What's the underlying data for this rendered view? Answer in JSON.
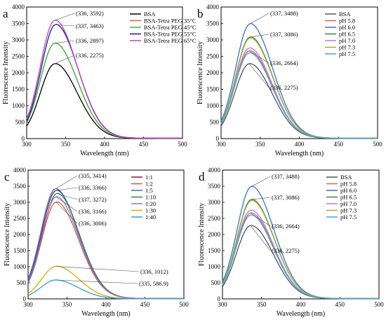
{
  "chart_data": [
    {
      "panel": "a",
      "type": "line",
      "xlabel": "Wavelength (nm)",
      "ylabel": "Fluorescence Intensity",
      "xlim": [
        300,
        500
      ],
      "ylim": [
        0,
        4000
      ],
      "xticks": [
        300,
        350,
        400,
        450,
        500
      ],
      "yticks": [
        0,
        500,
        1000,
        1500,
        2000,
        2500,
        3000,
        3500,
        4000
      ],
      "legend_position": "top-right",
      "series": [
        {
          "name": "BSA",
          "color": "#000000",
          "peak_x": 336,
          "peak_y": 2275
        },
        {
          "name": "BSA-Tetra PEG 35°C",
          "color": "#e05a2b",
          "peak_x": 336,
          "peak_y": 2897
        },
        {
          "name": "BSA-Tetra PEG 45°C",
          "color": "#3cb83c",
          "peak_x": 336,
          "peak_y": 2897
        },
        {
          "name": "BSA-Tetra PEG 55°C",
          "color": "#1a1a8c",
          "peak_x": 337,
          "peak_y": 3463
        },
        {
          "name": "BSA-Tetra PEG 65°C",
          "color": "#c040c0",
          "peak_x": 336,
          "peak_y": 3592
        }
      ],
      "annotations": [
        {
          "text": "(336, 3592)",
          "x": 336,
          "y": 3592
        },
        {
          "text": "(337, 3463)",
          "x": 337,
          "y": 3463
        },
        {
          "text": "(336, 2897)",
          "x": 336,
          "y": 2897
        },
        {
          "text": "(336, 2275)",
          "x": 336,
          "y": 2275
        }
      ]
    },
    {
      "panel": "b",
      "type": "line",
      "xlabel": "Wavelength (nm)",
      "ylabel": "Fluorescence Intensity",
      "xlim": [
        300,
        500
      ],
      "ylim": [
        0,
        4000
      ],
      "xticks": [
        300,
        350,
        400,
        450,
        500
      ],
      "yticks": [
        0,
        500,
        1000,
        1500,
        2000,
        2500,
        3000,
        3500,
        4000
      ],
      "legend_position": "top-right",
      "series": [
        {
          "name": "BSA",
          "color": "#555555",
          "peak_x": 336,
          "peak_y": 2275
        },
        {
          "name": "pH 5.8",
          "color": "#d95f5f",
          "peak_x": 336,
          "peak_y": 2664
        },
        {
          "name": "pH 6.0",
          "color": "#3a6fd8",
          "peak_x": 337,
          "peak_y": 3488
        },
        {
          "name": "pH 6.5",
          "color": "#2e8b57",
          "peak_x": 337,
          "peak_y": 3086
        },
        {
          "name": "pH 7.0",
          "color": "#b57edc",
          "peak_x": 336,
          "peak_y": 2750
        },
        {
          "name": "pH 7.3",
          "color": "#a8b020",
          "peak_x": 337,
          "peak_y": 3050
        },
        {
          "name": "pH 7.5",
          "color": "#40a8d8",
          "peak_x": 336,
          "peak_y": 2600
        }
      ],
      "annotations": [
        {
          "text": "(337, 3488)",
          "x": 337,
          "y": 3488
        },
        {
          "text": "(337, 3086)",
          "x": 337,
          "y": 3086
        },
        {
          "text": "(336, 2664)",
          "x": 336,
          "y": 2664
        },
        {
          "text": "(336, 2275)",
          "x": 336,
          "y": 2275
        }
      ]
    },
    {
      "panel": "c",
      "type": "line",
      "xlabel": "Wavelength (nm)",
      "ylabel": "Fluorescence Intensity",
      "xlim": [
        300,
        500
      ],
      "ylim": [
        0,
        4000
      ],
      "xticks": [
        300,
        350,
        400,
        450,
        500
      ],
      "yticks": [
        0,
        500,
        1000,
        1500,
        2000,
        2500,
        3000,
        3500,
        4000
      ],
      "legend_position": "top-right",
      "series": [
        {
          "name": "1:1",
          "color": "#7a1f3d",
          "peak_x": 336,
          "peak_y": 3366
        },
        {
          "name": "1:2",
          "color": "#e05a2b",
          "peak_x": 336,
          "peak_y": 3006
        },
        {
          "name": "1:5",
          "color": "#3a6fd8",
          "peak_x": 335,
          "peak_y": 3414
        },
        {
          "name": "1:10",
          "color": "#2e8b57",
          "peak_x": 337,
          "peak_y": 3272
        },
        {
          "name": "1:20",
          "color": "#9b6fd0",
          "peak_x": 336,
          "peak_y": 3166
        },
        {
          "name": "1:30",
          "color": "#d8a800",
          "peak_x": 336,
          "peak_y": 1012
        },
        {
          "name": "1:40",
          "color": "#30a0d0",
          "peak_x": 335,
          "peak_y": 586.9
        }
      ],
      "annotations": [
        {
          "text": "(335, 3414)",
          "x": 335,
          "y": 3414
        },
        {
          "text": "(336, 3366)",
          "x": 336,
          "y": 3366
        },
        {
          "text": "(337, 3272)",
          "x": 337,
          "y": 3272
        },
        {
          "text": "(336, 3166)",
          "x": 336,
          "y": 3166
        },
        {
          "text": "(336, 3006)",
          "x": 336,
          "y": 3006
        },
        {
          "text": "(336, 1012)",
          "x": 336,
          "y": 1012
        },
        {
          "text": "(335, 586.9)",
          "x": 335,
          "y": 586.9
        }
      ]
    },
    {
      "panel": "d",
      "type": "line",
      "xlabel": "Wavelength (nm)",
      "ylabel": "Fluorescence Intensity",
      "xlim": [
        300,
        500
      ],
      "ylim": [
        0,
        4000
      ],
      "xticks": [
        300,
        350,
        400,
        450,
        500
      ],
      "yticks": [
        0,
        500,
        1000,
        1500,
        2000,
        2500,
        3000,
        3500,
        4000
      ],
      "legend_position": "top-right",
      "series": [
        {
          "name": "BSA",
          "color": "#555555",
          "peak_x": 336,
          "peak_y": 2275
        },
        {
          "name": "pH 5.8",
          "color": "#d95f5f",
          "peak_x": 336,
          "peak_y": 2664
        },
        {
          "name": "pH 6.0",
          "color": "#3a6fd8",
          "peak_x": 337,
          "peak_y": 3488
        },
        {
          "name": "pH 6.5",
          "color": "#2e8b57",
          "peak_x": 337,
          "peak_y": 3086
        },
        {
          "name": "pH 7.0",
          "color": "#b57edc",
          "peak_x": 336,
          "peak_y": 2750
        },
        {
          "name": "pH 7.3",
          "color": "#a8b020",
          "peak_x": 337,
          "peak_y": 3050
        },
        {
          "name": "pH 7.5",
          "color": "#40a8d8",
          "peak_x": 336,
          "peak_y": 2600
        }
      ],
      "annotations": [
        {
          "text": "(337, 3488)",
          "x": 337,
          "y": 3488
        },
        {
          "text": "(337, 3086)",
          "x": 337,
          "y": 3086
        },
        {
          "text": "(336, 2664)",
          "x": 336,
          "y": 2664
        },
        {
          "text": "(336, 2275)",
          "x": 336,
          "y": 2275
        }
      ]
    }
  ]
}
